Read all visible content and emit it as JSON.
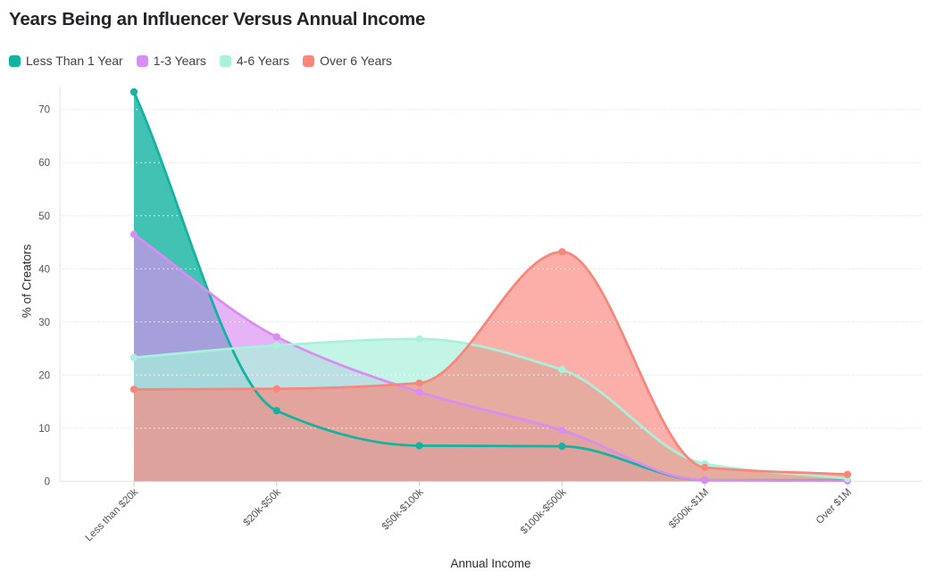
{
  "page": {
    "background": "#ffffff"
  },
  "title": "Years Being an Influencer Versus Annual Income",
  "chart_data": {
    "type": "area",
    "title": "Years Being an Influencer Versus Annual Income",
    "xlabel": "Annual Income",
    "ylabel": "% of Creators",
    "categories": [
      "Less than $20k",
      "$20k-$50k",
      "$50k-$100k",
      "$100k-$500k",
      "$500k-$1M",
      "Over $1M"
    ],
    "series": [
      {
        "name": "Less Than 1 Year",
        "color": "#12b3a0",
        "fill_opacity": 0.8,
        "values": [
          73.3,
          13.3,
          6.7,
          6.6,
          0.2,
          0.2
        ]
      },
      {
        "name": "1-3 Years",
        "color": "#d98df2",
        "fill_opacity": 0.66,
        "values": [
          46.5,
          27.2,
          16.8,
          9.6,
          0.2,
          0.1
        ]
      },
      {
        "name": "4-6 Years",
        "color": "#a8f1da",
        "fill_opacity": 0.7,
        "values": [
          23.3,
          25.6,
          26.8,
          21.0,
          3.3,
          0.5
        ]
      },
      {
        "name": "Over 6 Years",
        "color": "#f9857b",
        "fill_opacity": 0.66,
        "values": [
          17.3,
          17.4,
          18.5,
          43.2,
          2.6,
          1.3
        ]
      }
    ],
    "y_ticks": [
      0,
      10,
      20,
      30,
      40,
      50,
      60,
      70
    ],
    "ylim": [
      0,
      77
    ],
    "grid": true,
    "curve": "smooth-monotone",
    "markers": true,
    "legend_position": "top-left"
  }
}
